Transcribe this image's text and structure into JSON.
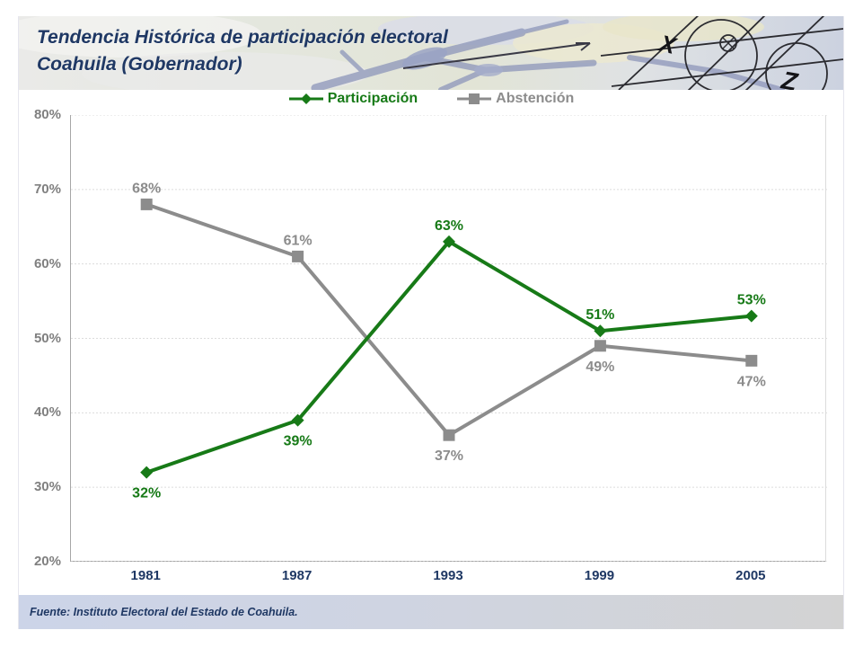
{
  "header": {
    "title_line1": "Tendencia Histórica de participación electoral",
    "title_line2": "Coahuila (Gobernador)",
    "artwork_letters": [
      "X",
      "Z"
    ]
  },
  "chart_data": {
    "type": "line",
    "title": "Tendencia Histórica de participación electoral Coahuila (Gobernador)",
    "categories": [
      "1981",
      "1987",
      "1993",
      "1999",
      "2005"
    ],
    "series": [
      {
        "name": "Participación",
        "values": [
          32,
          39,
          63,
          51,
          53
        ],
        "color": "#177a17",
        "marker": "diamond",
        "label_positions": [
          "below",
          "below",
          "above",
          "above",
          "above"
        ]
      },
      {
        "name": "Abstención",
        "values": [
          68,
          61,
          37,
          49,
          47
        ],
        "color": "#8c8c8c",
        "marker": "square",
        "label_positions": [
          "above",
          "above",
          "below",
          "below",
          "below"
        ]
      }
    ],
    "ylim": [
      20,
      80
    ],
    "ytick_step": 10,
    "value_suffix": "%",
    "grid": true,
    "legend_position": "top-center"
  },
  "footer": {
    "source": "Fuente: Instituto Electoral del Estado de Coahuila."
  },
  "colors": {
    "title_navy": "#1f3864",
    "participacion_green": "#177a17",
    "abstencion_gray": "#8c8c8c",
    "axis_text_gray": "#7f7f7f",
    "gridline": "#dcdcdc",
    "footer_bg_left": "#ccd4e8",
    "footer_bg_right": "#d3d3d3"
  }
}
